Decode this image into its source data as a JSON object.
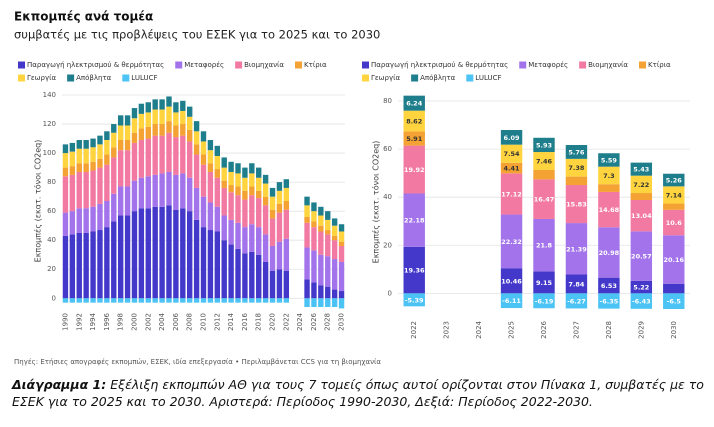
{
  "title": "Εκπομπές ανά τομέα",
  "subtitle": "συμβατές με τις προβλέψεις του ΕΣΕΚ για το 2025 και το 2030",
  "source": "Πηγές: Ετήσιες απογραφές εκπομπών, ΕΣΕΚ, ιδία επεξεργασία • Περιλαμβάνεται CCS για τη βιομηχανία",
  "caption": {
    "label": "Διάγραμμα 1:",
    "text": "Εξέλιξη εκπομπών ΑΘ για τους 7 τομείς όπως αυτοί ορίζονται στον Πίνακα 1, συμβατές με το ΕΣΕΚ για το 2025 και το 2030. Αριστερά: Περίοδος 1990-2030, Δεξιά: Περίοδος 2022-2030."
  },
  "chart_data": [
    {
      "type": "bar",
      "stacked": true,
      "grid": true,
      "data_labels": false,
      "y_label": "Εκπομπές (εκατ. τόνοι CO2eq)",
      "ylim": [
        -6,
        140
      ],
      "yticks": [
        0,
        20,
        40,
        60,
        80,
        100,
        120,
        140
      ],
      "categories": [
        "1990",
        null,
        "1992",
        null,
        "1994",
        null,
        "1996",
        null,
        "1998",
        null,
        "2000",
        null,
        "2002",
        null,
        "2004",
        null,
        "2006",
        null,
        "2008",
        null,
        "2010",
        null,
        "2012",
        null,
        "2014",
        null,
        "2016",
        null,
        "2018",
        null,
        "2020",
        null,
        "2022",
        null,
        "2024",
        null,
        "2026",
        null,
        "2028",
        null,
        "2030"
      ],
      "series": [
        {
          "name": "Παραγωγή ηλεκτρισμού & θερμότητας",
          "color": "#4338c9",
          "values": [
            43,
            44,
            45,
            45,
            46,
            47,
            49,
            53,
            57,
            57,
            60,
            62,
            62,
            63,
            63,
            64,
            61,
            62,
            60,
            54,
            49,
            47,
            46,
            40,
            37,
            34,
            31,
            32,
            30,
            25,
            19,
            20,
            19,
            null,
            null,
            13,
            11,
            9,
            8,
            6,
            5
          ]
        },
        {
          "name": "Μεταφορές",
          "color": "#a273ea",
          "values": [
            16,
            16,
            17,
            17,
            17,
            18,
            18,
            19,
            20,
            20,
            21,
            21,
            22,
            22,
            23,
            23,
            24,
            24,
            23,
            22,
            21,
            19,
            17,
            17,
            17,
            18,
            18,
            19,
            19,
            19,
            17,
            19,
            22,
            null,
            null,
            22,
            22,
            21,
            21,
            21,
            20
          ]
        },
        {
          "name": "Βιομηχανία",
          "color": "#f27aa2",
          "values": [
            25,
            25,
            25,
            25,
            25,
            25,
            25,
            25,
            25,
            25,
            26,
            26,
            26,
            27,
            26,
            27,
            26,
            26,
            25,
            23,
            22,
            21,
            20,
            19,
            19,
            19,
            19,
            20,
            20,
            20,
            19,
            20,
            20,
            null,
            null,
            17,
            16,
            16,
            15,
            13,
            11
          ]
        },
        {
          "name": "Κτίρια",
          "color": "#f3a233",
          "values": [
            6,
            6,
            6,
            6,
            6,
            6,
            7,
            7,
            7,
            7,
            7,
            8,
            8,
            8,
            8,
            8,
            8,
            8,
            8,
            7,
            7,
            6,
            6,
            5,
            5,
            6,
            6,
            6,
            5,
            6,
            6,
            6,
            6,
            null,
            null,
            4,
            4,
            4,
            3,
            3,
            3
          ]
        },
        {
          "name": "Γεωργία",
          "color": "#ffd43f",
          "values": [
            10,
            10,
            10,
            10,
            10,
            10,
            10,
            10,
            10,
            10,
            10,
            10,
            10,
            10,
            10,
            10,
            9,
            9,
            9,
            9,
            9,
            9,
            9,
            9,
            9,
            9,
            9,
            9,
            9,
            9,
            9,
            9,
            9,
            null,
            null,
            8,
            7,
            7,
            7,
            7,
            7
          ]
        },
        {
          "name": "Απόβλητα",
          "color": "#1f7e8c",
          "values": [
            6,
            6,
            6,
            6,
            6,
            6,
            6,
            6,
            7,
            7,
            7,
            7,
            7,
            7,
            7,
            7,
            7,
            7,
            7,
            7,
            7,
            7,
            7,
            7,
            7,
            7,
            7,
            7,
            7,
            6,
            6,
            6,
            6,
            null,
            null,
            6,
            6,
            6,
            6,
            5,
            5
          ]
        },
        {
          "name": "LULUCF",
          "color": "#4cc3f5",
          "values": [
            -3,
            -3,
            -3,
            -3,
            -3,
            -3,
            -3,
            -3,
            -3,
            -3,
            -3,
            -3,
            -3,
            -3,
            -3,
            -3,
            -3,
            -3,
            -3,
            -3,
            -3,
            -3,
            -3,
            -3,
            -3,
            -3,
            -3,
            -3,
            -3,
            -3,
            -3,
            -3,
            -3,
            null,
            null,
            -6,
            -6,
            -6,
            -6,
            -6,
            -7
          ]
        }
      ]
    },
    {
      "type": "bar",
      "stacked": true,
      "grid": true,
      "data_labels": true,
      "y_label": "Εκπομπές (εκατ. τόνοι CO2eq)",
      "ylim": [
        -9,
        85
      ],
      "yticks": [
        0,
        20,
        40,
        60,
        80
      ],
      "categories": [
        "2022",
        "2023",
        "2024",
        "2025",
        "2026",
        "2027",
        "2028",
        "2029",
        "2030"
      ],
      "series": [
        {
          "name": "Παραγωγή ηλεκτρισμού & θερμότητας",
          "color": "#4338c9",
          "values": [
            19.36,
            null,
            null,
            10.46,
            9.15,
            7.84,
            6.53,
            5.22,
            4
          ],
          "value_labels": [
            "19.36",
            null,
            null,
            "10.46",
            "9.15",
            "7.84",
            "6.53",
            "5.22",
            null
          ]
        },
        {
          "name": "Μεταφορές",
          "color": "#a273ea",
          "values": [
            22.18,
            null,
            null,
            22.32,
            21.8,
            21.39,
            20.98,
            20.57,
            20.16
          ]
        },
        {
          "name": "Βιομηχανία",
          "color": "#f27aa2",
          "values": [
            19.92,
            null,
            null,
            17.12,
            16.47,
            15.83,
            14.68,
            13.04,
            10.6
          ]
        },
        {
          "name": "Κτίρια",
          "color": "#f3a233",
          "values": [
            5.91,
            null,
            null,
            4.41,
            3.9,
            3.5,
            3.2,
            2.9,
            2.6
          ],
          "value_labels": [
            "5.91",
            null,
            null,
            "4.41",
            null,
            null,
            null,
            null,
            null
          ]
        },
        {
          "name": "Γεωργία",
          "color": "#ffd43f",
          "values": [
            8.62,
            null,
            null,
            7.54,
            7.46,
            7.38,
            7.3,
            7.22,
            7.14
          ]
        },
        {
          "name": "Απόβλητα",
          "color": "#1f7e8c",
          "values": [
            6.24,
            null,
            null,
            6.09,
            5.93,
            5.76,
            5.59,
            5.43,
            5.26
          ]
        },
        {
          "name": "LULUCF",
          "color": "#4cc3f5",
          "values": [
            -5.39,
            null,
            null,
            -6.11,
            -6.19,
            -6.27,
            -6.35,
            -6.43,
            -6.5
          ]
        }
      ]
    }
  ]
}
